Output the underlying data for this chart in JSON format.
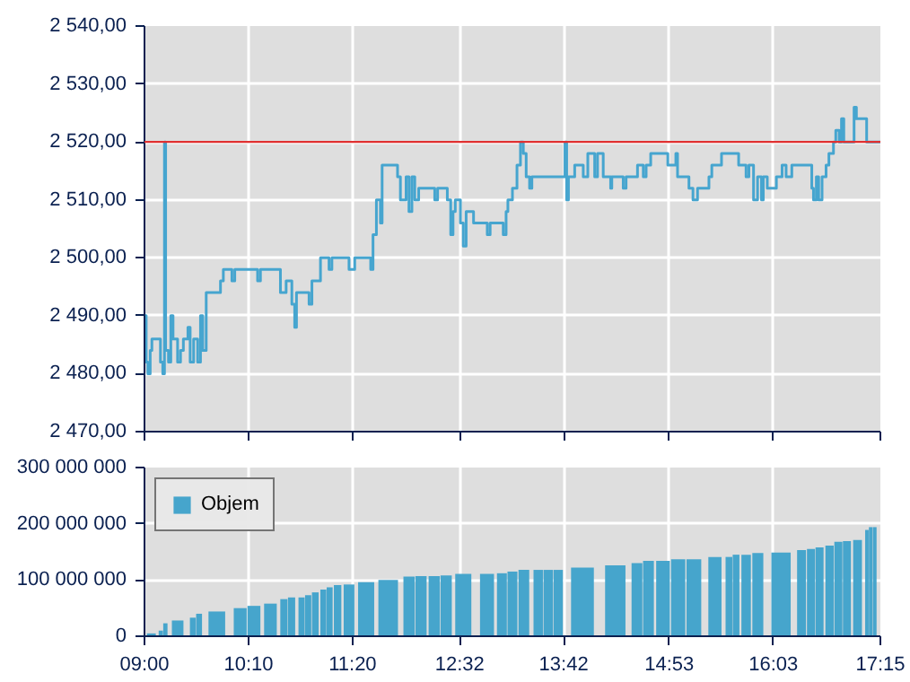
{
  "chart_data": [
    {
      "type": "step",
      "xlim": [
        9,
        17.25
      ],
      "ylim": [
        2470,
        2540
      ],
      "grid": true,
      "tick_labels": "y",
      "xticks": [
        {
          "value": 9,
          "label": null
        },
        {
          "value": 10.1667,
          "label": null
        },
        {
          "value": 11.3333,
          "label": null
        },
        {
          "value": 12.5333,
          "label": null
        },
        {
          "value": 13.7,
          "label": null
        },
        {
          "value": 14.8833,
          "label": null
        },
        {
          "value": 16.05,
          "label": null
        },
        {
          "value": 17.25,
          "label": null
        }
      ],
      "yticks": [
        {
          "value": 2470,
          "label": "2 470,00"
        },
        {
          "value": 2480,
          "label": "2 480,00"
        },
        {
          "value": 2490,
          "label": "2 490,00"
        },
        {
          "value": 2500,
          "label": "2 500,00"
        },
        {
          "value": 2510,
          "label": "2 510,00"
        },
        {
          "value": 2520,
          "label": "2 520,00"
        },
        {
          "value": 2530,
          "label": "2 530,00"
        },
        {
          "value": 2540,
          "label": "2 540,00"
        }
      ],
      "ref_lines": [
        {
          "axis": "y",
          "value": 2520,
          "color": "#e03030"
        }
      ],
      "series": [
        {
          "color": "#46a5cf",
          "x": [
            9.0,
            9.019,
            9.038,
            9.064,
            9.083,
            9.167,
            9.179,
            9.205,
            9.224,
            9.237,
            9.269,
            9.295,
            9.32,
            9.371,
            9.404,
            9.436,
            9.487,
            9.512,
            9.551,
            9.596,
            9.628,
            9.653,
            9.692,
            9.852,
            9.884,
            9.98,
            10.012,
            10.268,
            10.3,
            10.524,
            10.588,
            10.652,
            10.684,
            10.704,
            10.845,
            10.877,
            10.973,
            11.069,
            11.101,
            11.293,
            11.357,
            11.536,
            11.562,
            11.6,
            11.645,
            11.664,
            11.837,
            11.869,
            11.933,
            11.965,
            11.998,
            12.03,
            12.074,
            12.254,
            12.286,
            12.395,
            12.433,
            12.459,
            12.484,
            12.542,
            12.574,
            12.606,
            12.689,
            12.843,
            12.875,
            13.022,
            13.054,
            13.074,
            13.125,
            13.176,
            13.215,
            13.247,
            13.279,
            13.317,
            13.343,
            13.695,
            13.714,
            13.733,
            13.753,
            13.823,
            13.919,
            13.97,
            14.047,
            14.079,
            14.143,
            14.226,
            14.239,
            14.367,
            14.399,
            14.527,
            14.592,
            14.624,
            14.675,
            14.867,
            14.957,
            14.976,
            15.104,
            15.149,
            15.2,
            15.328,
            15.36,
            15.469,
            15.661,
            15.744,
            15.776,
            15.828,
            15.873,
            15.917,
            15.937,
            15.982,
            16.084,
            16.148,
            16.193,
            16.257,
            16.481,
            16.5,
            16.532,
            16.558,
            16.596,
            16.641,
            16.673,
            16.724,
            16.75,
            16.788,
            16.814,
            16.84,
            16.955,
            16.981,
            17.096,
            17.25
          ],
          "values": [
            2490,
            2482,
            2480,
            2484,
            2486,
            2486,
            2482,
            2480,
            2520,
            2484,
            2482,
            2490,
            2486,
            2482,
            2484,
            2486,
            2488,
            2482,
            2486,
            2482,
            2490,
            2484,
            2494,
            2496,
            2498,
            2496,
            2498,
            2496,
            2498,
            2494,
            2496,
            2492,
            2488,
            2494,
            2492,
            2496,
            2500,
            2498,
            2500,
            2498,
            2500,
            2498,
            2504,
            2510,
            2506,
            2516,
            2514,
            2510,
            2514,
            2508,
            2514,
            2510,
            2512,
            2510,
            2512,
            2510,
            2504,
            2508,
            2510,
            2506,
            2502,
            2508,
            2506,
            2504,
            2506,
            2504,
            2508,
            2510,
            2512,
            2516,
            2520,
            2518,
            2514,
            2512,
            2514,
            2514,
            2520,
            2510,
            2514,
            2516,
            2514,
            2518,
            2514,
            2518,
            2514,
            2512,
            2514,
            2512,
            2514,
            2516,
            2514,
            2516,
            2518,
            2516,
            2518,
            2514,
            2512,
            2510,
            2512,
            2514,
            2516,
            2518,
            2516,
            2514,
            2516,
            2510,
            2514,
            2510,
            2514,
            2512,
            2514,
            2516,
            2514,
            2516,
            2512,
            2510,
            2514,
            2510,
            2514,
            2516,
            2518,
            2520,
            2522,
            2520,
            2524,
            2520,
            2526,
            2524,
            2520,
            2520
          ]
        }
      ]
    },
    {
      "type": "bar",
      "xlim": [
        9,
        17.25
      ],
      "ylim": [
        0,
        300000000
      ],
      "grid": true,
      "legend": "top left",
      "xticks": [
        {
          "value": 9,
          "label": "09:00"
        },
        {
          "value": 10.1667,
          "label": "10:10"
        },
        {
          "value": 11.3333,
          "label": "11:20"
        },
        {
          "value": 12.5333,
          "label": "12:32"
        },
        {
          "value": 13.7,
          "label": "13:42"
        },
        {
          "value": 14.8833,
          "label": "14:53"
        },
        {
          "value": 16.05,
          "label": "16:03"
        },
        {
          "value": 17.25,
          "label": "17:15"
        }
      ],
      "yticks": [
        {
          "value": 0,
          "label": "0"
        },
        {
          "value": 100000000,
          "label": "100 000 000"
        },
        {
          "value": 200000000,
          "label": "200 000 000"
        },
        {
          "value": 300000000,
          "label": "300 000 000"
        }
      ],
      "series": [
        {
          "name": "Objem",
          "color": "#46a5cc",
          "x": [
            9.077,
            9.183,
            9.234,
            9.372,
            9.542,
            9.612,
            9.811,
            10.073,
            10.227,
            10.412,
            10.563,
            10.649,
            10.761,
            10.835,
            10.915,
            11.005,
            11.076,
            11.165,
            11.293,
            11.485,
            11.732,
            11.966,
            12.1,
            12.248,
            12.382,
            12.574,
            12.84,
            13.007,
            13.125,
            13.253,
            13.414,
            13.526,
            13.638,
            13.91,
            14.278,
            14.521,
            14.65,
            14.813,
            14.983,
            15.159,
            15.395,
            15.552,
            15.632,
            15.745,
            15.876,
            16.136,
            16.366,
            16.472,
            16.568,
            16.68,
            16.779,
            16.875,
            16.994,
            17.099,
            17.141,
            17.186
          ],
          "values": [
            5000000,
            10000000,
            23000000,
            28000000,
            33000000,
            40000000,
            44000000,
            50000000,
            54000000,
            58000000,
            66000000,
            69000000,
            69000000,
            73000000,
            78000000,
            83000000,
            87000000,
            91000000,
            92000000,
            96000000,
            100000000,
            106000000,
            107000000,
            107000000,
            108000000,
            111000000,
            111000000,
            112000000,
            115000000,
            118000000,
            118000000,
            118000000,
            118000000,
            122000000,
            126000000,
            130000000,
            134000000,
            134000000,
            137000000,
            137000000,
            141000000,
            141000000,
            145000000,
            145000000,
            148000000,
            149000000,
            153000000,
            155000000,
            158000000,
            161000000,
            168000000,
            169000000,
            171000000,
            189000000,
            194000000,
            194000000
          ]
        }
      ]
    }
  ]
}
